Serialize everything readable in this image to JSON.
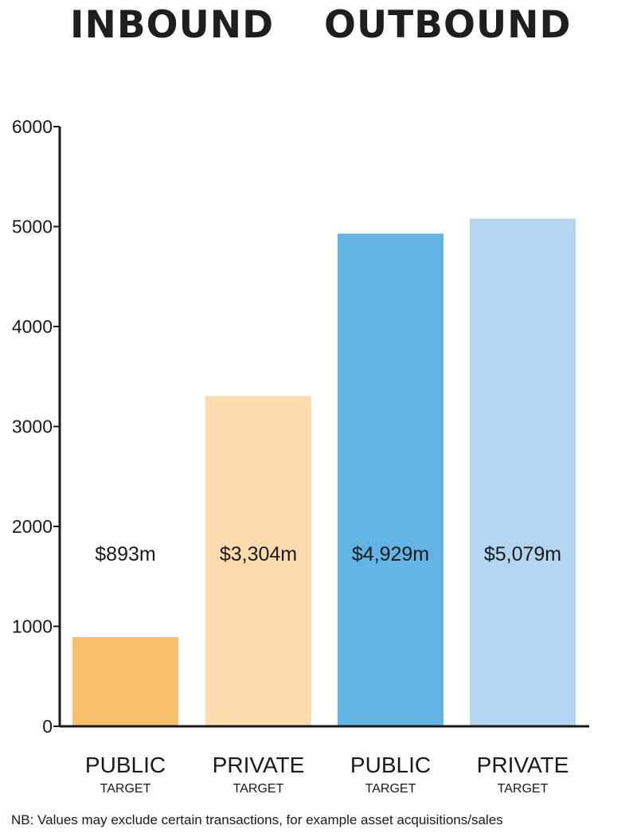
{
  "chart_data": {
    "type": "bar",
    "group_titles": [
      "INBOUND",
      "OUTBOUND"
    ],
    "categories": [
      {
        "main": "PUBLIC",
        "sub": "TARGET",
        "group": "INBOUND"
      },
      {
        "main": "PRIVATE",
        "sub": "TARGET",
        "group": "INBOUND"
      },
      {
        "main": "PUBLIC",
        "sub": "TARGET",
        "group": "OUTBOUND"
      },
      {
        "main": "PRIVATE",
        "sub": "TARGET",
        "group": "OUTBOUND"
      }
    ],
    "values": [
      893,
      3304,
      4929,
      5079
    ],
    "value_labels": [
      "$893m",
      "$3,304m",
      "$4,929m",
      "$5,079m"
    ],
    "colors": [
      "#f9bf6c",
      "#fcdcad",
      "#62b4e4",
      "#b2d5f1"
    ],
    "ylim": [
      0,
      6000
    ],
    "yticks": [
      0,
      1000,
      2000,
      3000,
      4000,
      5000,
      6000
    ],
    "ytick_labels": [
      "0",
      "1000",
      "2000",
      "3000",
      "4000",
      "5000",
      "6000"
    ],
    "grid": false,
    "xlabel": "",
    "ylabel": ""
  },
  "footnote": "NB: Values may exclude certain transactions, for example asset acquisitions/sales"
}
